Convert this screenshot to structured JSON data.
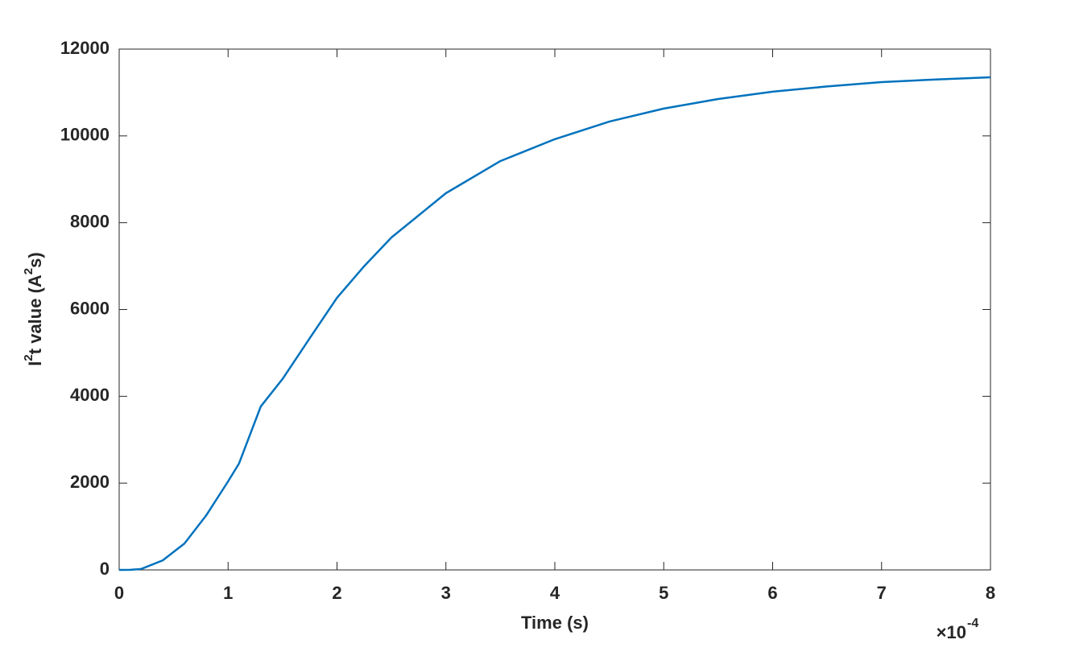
{
  "chart_data": {
    "type": "line",
    "xlabel": "Time (s)",
    "ylabel_parts": [
      "I",
      "2",
      "t value (A",
      "2",
      "s)"
    ],
    "x_exponent_base": "×10",
    "x_exponent": "-4",
    "x": [
      0,
      0.1,
      0.2,
      0.4,
      0.6,
      0.8,
      1.0,
      1.1,
      1.3,
      1.5,
      1.75,
      2.0,
      2.25,
      2.5,
      3.0,
      3.5,
      4.0,
      4.5,
      5.0,
      5.5,
      6.0,
      6.5,
      7.0,
      7.5,
      8.0
    ],
    "series": [
      {
        "color": "#0072bd",
        "values": [
          0,
          3,
          20,
          220,
          610,
          1260,
          2040,
          2450,
          3766,
          4400,
          5340,
          6270,
          7000,
          7660,
          8680,
          9420,
          9925,
          10330,
          10630,
          10850,
          11020,
          11140,
          11240,
          11300,
          11350
        ]
      }
    ],
    "xlim": [
      0,
      8
    ],
    "xticks": [
      0,
      1,
      2,
      3,
      4,
      5,
      6,
      7,
      8
    ],
    "ylim": [
      0,
      12000
    ],
    "yticks": [
      0,
      2000,
      4000,
      6000,
      8000,
      10000,
      12000
    ],
    "grid": false
  }
}
